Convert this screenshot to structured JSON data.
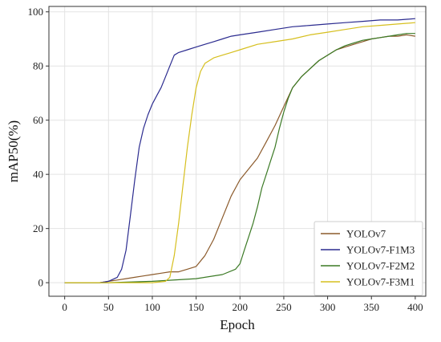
{
  "chart_data": {
    "type": "line",
    "title": "",
    "xlabel": "Epoch",
    "ylabel": "mAP50(%)",
    "xlim": [
      -18,
      412
    ],
    "ylim": [
      -5,
      102
    ],
    "xticks": [
      0,
      50,
      100,
      150,
      200,
      250,
      300,
      350,
      400
    ],
    "yticks": [
      0,
      20,
      40,
      60,
      80,
      100
    ],
    "grid": true,
    "legend_position": "lower-right",
    "series": [
      {
        "name": "YOLOv7",
        "color": "#8b5a2b",
        "points": [
          [
            0,
            0
          ],
          [
            40,
            0
          ],
          [
            50,
            0.5
          ],
          [
            60,
            1
          ],
          [
            70,
            1.5
          ],
          [
            80,
            2
          ],
          [
            90,
            2.5
          ],
          [
            100,
            3
          ],
          [
            110,
            3.5
          ],
          [
            120,
            4
          ],
          [
            130,
            4
          ],
          [
            140,
            5
          ],
          [
            150,
            6
          ],
          [
            160,
            10
          ],
          [
            170,
            16
          ],
          [
            180,
            24
          ],
          [
            190,
            32
          ],
          [
            200,
            38
          ],
          [
            210,
            42
          ],
          [
            220,
            46
          ],
          [
            230,
            52
          ],
          [
            240,
            58
          ],
          [
            250,
            65
          ],
          [
            260,
            72
          ],
          [
            270,
            76
          ],
          [
            280,
            79
          ],
          [
            290,
            82
          ],
          [
            300,
            84
          ],
          [
            310,
            86
          ],
          [
            320,
            87
          ],
          [
            330,
            88
          ],
          [
            340,
            89
          ],
          [
            350,
            90
          ],
          [
            360,
            90.5
          ],
          [
            370,
            91
          ],
          [
            380,
            91
          ],
          [
            390,
            91.5
          ],
          [
            400,
            91
          ]
        ]
      },
      {
        "name": "YOLOv7-F1M3",
        "color": "#2b2b8f",
        "points": [
          [
            0,
            0
          ],
          [
            40,
            0
          ],
          [
            50,
            0.5
          ],
          [
            60,
            2
          ],
          [
            65,
            5
          ],
          [
            70,
            12
          ],
          [
            75,
            25
          ],
          [
            80,
            38
          ],
          [
            85,
            50
          ],
          [
            90,
            57
          ],
          [
            95,
            62
          ],
          [
            100,
            66
          ],
          [
            105,
            69
          ],
          [
            110,
            72
          ],
          [
            115,
            76
          ],
          [
            120,
            80
          ],
          [
            125,
            84
          ],
          [
            130,
            85
          ],
          [
            140,
            86
          ],
          [
            150,
            87
          ],
          [
            160,
            88
          ],
          [
            170,
            89
          ],
          [
            180,
            90
          ],
          [
            190,
            91
          ],
          [
            200,
            91.5
          ],
          [
            220,
            92.5
          ],
          [
            240,
            93.5
          ],
          [
            260,
            94.5
          ],
          [
            280,
            95
          ],
          [
            300,
            95.5
          ],
          [
            320,
            96
          ],
          [
            340,
            96.5
          ],
          [
            360,
            97
          ],
          [
            380,
            97
          ],
          [
            400,
            97.5
          ]
        ]
      },
      {
        "name": "YOLOv7-F2M2",
        "color": "#3b7a25",
        "points": [
          [
            0,
            0
          ],
          [
            50,
            0
          ],
          [
            100,
            0.5
          ],
          [
            150,
            1.5
          ],
          [
            180,
            3
          ],
          [
            195,
            5
          ],
          [
            200,
            7
          ],
          [
            205,
            12
          ],
          [
            210,
            17
          ],
          [
            215,
            22
          ],
          [
            220,
            28
          ],
          [
            225,
            35
          ],
          [
            230,
            40
          ],
          [
            235,
            45
          ],
          [
            240,
            50
          ],
          [
            245,
            57
          ],
          [
            250,
            63
          ],
          [
            255,
            68
          ],
          [
            260,
            72
          ],
          [
            270,
            76
          ],
          [
            280,
            79
          ],
          [
            290,
            82
          ],
          [
            300,
            84
          ],
          [
            310,
            86
          ],
          [
            320,
            87.5
          ],
          [
            330,
            88.5
          ],
          [
            340,
            89.5
          ],
          [
            350,
            90
          ],
          [
            360,
            90.5
          ],
          [
            370,
            91
          ],
          [
            380,
            91.5
          ],
          [
            390,
            92
          ],
          [
            400,
            92
          ]
        ]
      },
      {
        "name": "YOLOv7-F3M1",
        "color": "#d6bf1e",
        "points": [
          [
            0,
            0
          ],
          [
            100,
            0
          ],
          [
            115,
            0.5
          ],
          [
            120,
            2
          ],
          [
            125,
            10
          ],
          [
            130,
            22
          ],
          [
            135,
            36
          ],
          [
            140,
            50
          ],
          [
            145,
            62
          ],
          [
            150,
            72
          ],
          [
            155,
            78
          ],
          [
            160,
            81
          ],
          [
            170,
            83
          ],
          [
            180,
            84
          ],
          [
            190,
            85
          ],
          [
            200,
            86
          ],
          [
            220,
            88
          ],
          [
            240,
            89
          ],
          [
            260,
            90
          ],
          [
            280,
            91.5
          ],
          [
            300,
            92.5
          ],
          [
            320,
            93.5
          ],
          [
            340,
            94.5
          ],
          [
            360,
            95
          ],
          [
            380,
            95.5
          ],
          [
            400,
            96
          ]
        ]
      }
    ]
  }
}
